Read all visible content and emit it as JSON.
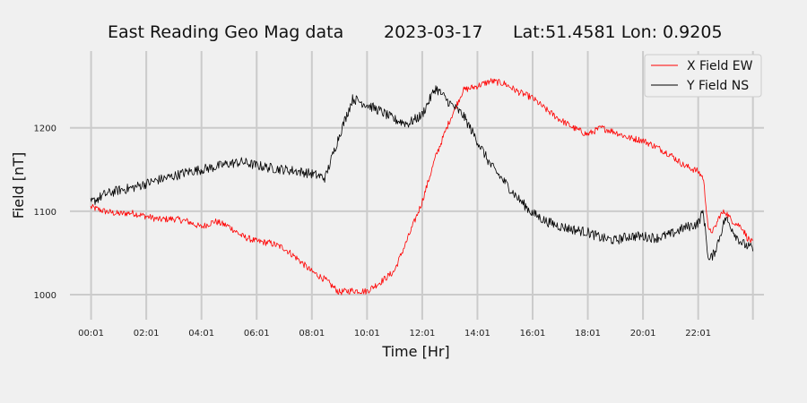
{
  "chart_data": {
    "type": "line",
    "title_parts": [
      "East Reading Geo Mag data",
      "2023-03-17",
      "Lat:51.4581  Lon: 0.9205"
    ],
    "xlabel": "Time  [Hr]",
    "ylabel": "Field  [nT]",
    "x_unit": "hours",
    "xlim": [
      -0.75,
      24.4
    ],
    "ylim": [
      970,
      1292
    ],
    "x_ticks": [
      {
        "x": 0.0167,
        "label": "00:01"
      },
      {
        "x": 2.0167,
        "label": "02:01"
      },
      {
        "x": 4.0167,
        "label": "04:01"
      },
      {
        "x": 6.0167,
        "label": "06:01"
      },
      {
        "x": 8.0167,
        "label": "08:01"
      },
      {
        "x": 10.0167,
        "label": "10:01"
      },
      {
        "x": 12.0167,
        "label": "12:01"
      },
      {
        "x": 14.0167,
        "label": "14:01"
      },
      {
        "x": 16.0167,
        "label": "16:01"
      },
      {
        "x": 18.0167,
        "label": "18:01"
      },
      {
        "x": 20.0167,
        "label": "20:01"
      },
      {
        "x": 22.0167,
        "label": "22:01"
      }
    ],
    "x_grid_extra": [
      24.0
    ],
    "y_ticks": [
      1000,
      1100,
      1200
    ],
    "grid": true,
    "legend": "top-right",
    "series": [
      {
        "name": "X Field EW",
        "color": "#ff0000",
        "x": [
          0,
          0.5,
          1,
          1.5,
          2,
          2.5,
          3,
          3.5,
          4,
          4.5,
          5,
          5.5,
          6,
          6.5,
          7,
          7.5,
          8,
          8.5,
          9,
          9.5,
          10,
          10.5,
          11,
          11.5,
          12,
          12.5,
          13,
          13.5,
          14,
          14.5,
          15,
          15.5,
          16,
          16.5,
          17,
          17.5,
          18,
          18.5,
          19,
          19.5,
          20,
          20.5,
          21,
          21.5,
          22,
          22.2,
          22.4,
          22.6,
          22.8,
          23,
          23.2,
          23.4,
          23.6,
          23.8,
          24
        ],
        "y": [
          1105,
          1100,
          1097,
          1098,
          1094,
          1090,
          1091,
          1088,
          1081,
          1088,
          1082,
          1070,
          1064,
          1062,
          1056,
          1043,
          1028,
          1018,
          1003,
          1005,
          1004,
          1015,
          1028,
          1068,
          1110,
          1165,
          1208,
          1245,
          1250,
          1256,
          1253,
          1243,
          1236,
          1222,
          1210,
          1200,
          1192,
          1200,
          1195,
          1188,
          1185,
          1177,
          1168,
          1155,
          1148,
          1140,
          1075,
          1078,
          1095,
          1100,
          1090,
          1085,
          1081,
          1068,
          1062
        ],
        "noise": 4
      },
      {
        "name": "Y Field NS",
        "color": "#000000",
        "x": [
          0,
          0.5,
          1,
          1.5,
          2,
          2.5,
          3,
          3.5,
          4,
          4.5,
          5,
          5.5,
          6,
          6.5,
          7,
          7.5,
          8,
          8.5,
          9,
          9.5,
          10,
          10.5,
          11,
          11.5,
          12,
          12.5,
          13,
          13.5,
          14,
          14.5,
          15,
          15.5,
          16,
          16.5,
          17,
          17.5,
          18,
          18.5,
          19,
          19.5,
          20,
          20.5,
          21,
          21.5,
          22,
          22.2,
          22.4,
          22.6,
          22.8,
          23,
          23.2,
          23.4,
          23.6,
          23.8,
          24
        ],
        "y": [
          1110,
          1120,
          1125,
          1128,
          1133,
          1138,
          1142,
          1147,
          1150,
          1153,
          1157,
          1159,
          1155,
          1152,
          1150,
          1148,
          1145,
          1140,
          1190,
          1235,
          1228,
          1220,
          1210,
          1205,
          1215,
          1248,
          1230,
          1215,
          1185,
          1155,
          1135,
          1115,
          1098,
          1088,
          1082,
          1078,
          1075,
          1068,
          1065,
          1070,
          1070,
          1068,
          1072,
          1080,
          1085,
          1100,
          1040,
          1050,
          1070,
          1092,
          1082,
          1070,
          1062,
          1058,
          1055
        ],
        "noise": 6
      }
    ]
  }
}
